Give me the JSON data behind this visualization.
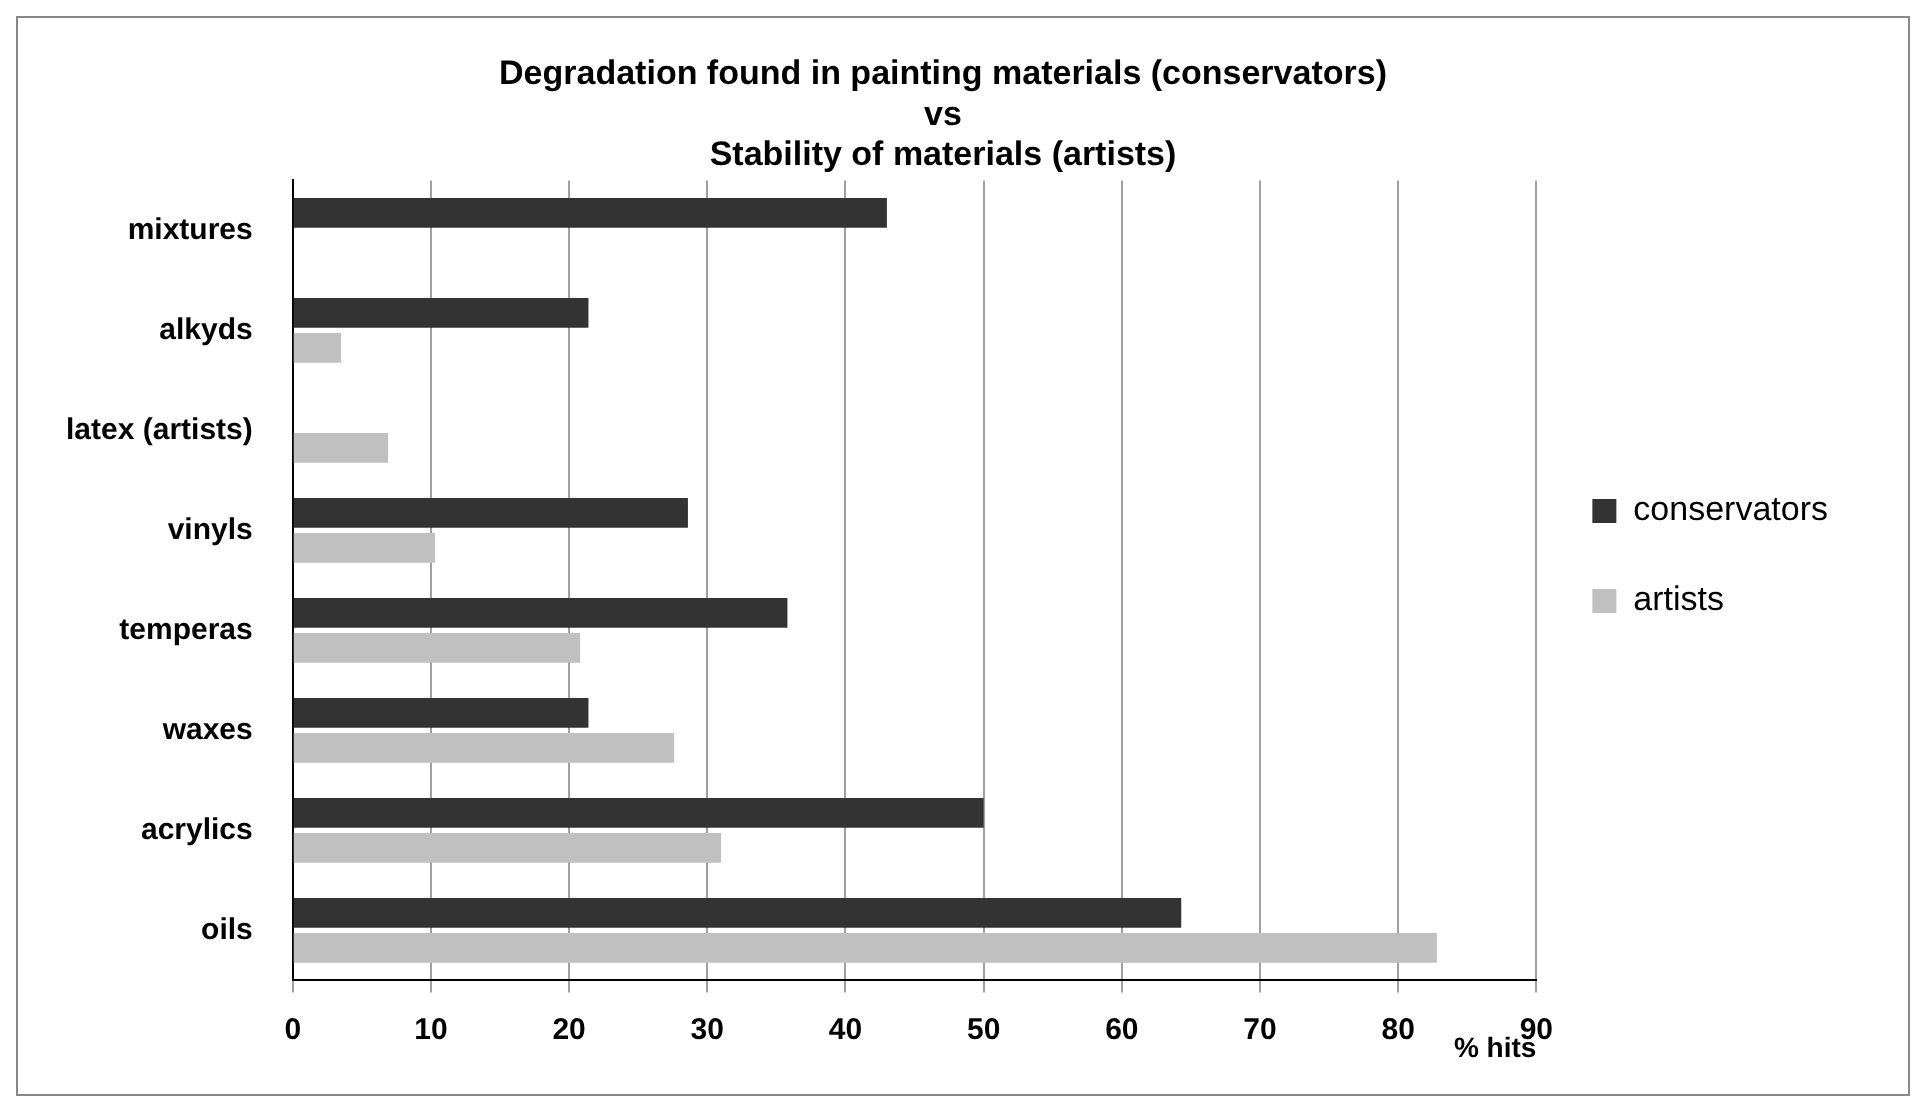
{
  "chart_data": {
    "type": "bar",
    "orientation": "horizontal",
    "title": "Degradation found in painting materials (conservators)\nvs\nStability of materials (artists)",
    "xlabel": "% hits",
    "categories": [
      "mixtures",
      "alkyds",
      "latex (artists)",
      "vinyls",
      "temperas",
      "waxes",
      "acrylics",
      "oils"
    ],
    "series": [
      {
        "name": "conservators",
        "color": "#333333",
        "values": [
          43.0,
          21.4,
          null,
          28.6,
          35.8,
          21.4,
          50.0,
          64.3
        ]
      },
      {
        "name": "artists",
        "color": "#c0c0c0",
        "values": [
          null,
          3.5,
          6.9,
          10.3,
          20.8,
          27.6,
          31.0,
          82.8
        ]
      }
    ],
    "xlim": [
      0,
      90
    ],
    "xticks": [
      0,
      10,
      20,
      30,
      40,
      50,
      60,
      70,
      80,
      90
    ],
    "grid": "x",
    "legend": "right"
  }
}
